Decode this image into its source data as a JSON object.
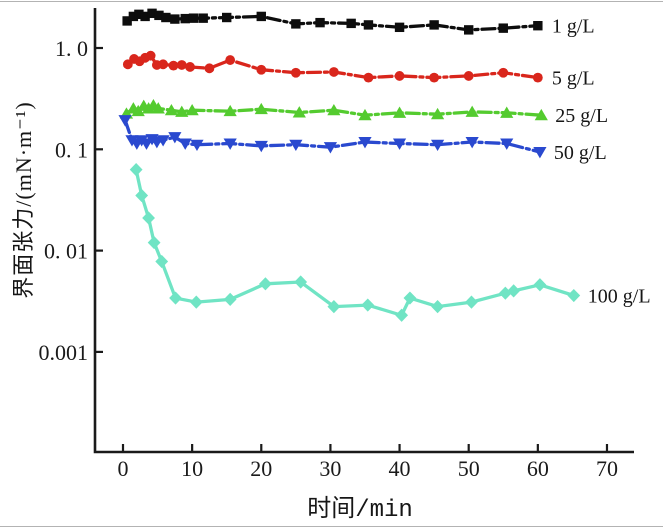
{
  "chart_data": {
    "type": "line",
    "title": "",
    "xlabel": "时间/min",
    "ylabel": "界面张力/(mN·m⁻¹)",
    "y_scale": "log",
    "grid": false,
    "xlim": [
      -4,
      74
    ],
    "ylim": [
      0.0001,
      2.5
    ],
    "x_ticks": [
      0,
      10,
      20,
      30,
      40,
      50,
      60,
      70
    ],
    "y_ticks": [
      {
        "value": 1.0,
        "label": "1. 0"
      },
      {
        "value": 0.1,
        "label": "0. 1"
      },
      {
        "value": 0.01,
        "label": "0. 01"
      },
      {
        "value": 0.001,
        "label": "0.001"
      }
    ],
    "legend_position": "right-of-last-point",
    "series": [
      {
        "name": "1 g/L",
        "color": "#0d0d0d",
        "marker": "square",
        "line_style": "dash-dot",
        "points": [
          [
            0.6,
            1.85
          ],
          [
            1.5,
            2.05
          ],
          [
            2.3,
            2.15
          ],
          [
            3.2,
            2.05
          ],
          [
            4.2,
            2.2
          ],
          [
            5.2,
            2.1
          ],
          [
            6.2,
            2.0
          ],
          [
            7.5,
            1.93
          ],
          [
            9,
            1.95
          ],
          [
            10.2,
            1.97
          ],
          [
            11.6,
            1.97
          ],
          [
            15,
            2.0
          ],
          [
            20,
            2.05
          ],
          [
            25,
            1.73
          ],
          [
            28.5,
            1.78
          ],
          [
            33,
            1.75
          ],
          [
            35.5,
            1.69
          ],
          [
            40,
            1.6
          ],
          [
            45,
            1.69
          ],
          [
            50,
            1.51
          ],
          [
            55,
            1.57
          ],
          [
            60,
            1.66
          ]
        ]
      },
      {
        "name": "5 g/L",
        "color": "#d9261c",
        "marker": "circle",
        "line_style": "dash-dot",
        "points": [
          [
            0.7,
            0.69
          ],
          [
            1.6,
            0.78
          ],
          [
            2.4,
            0.74
          ],
          [
            3.2,
            0.8
          ],
          [
            4,
            0.84
          ],
          [
            4.9,
            0.68
          ],
          [
            5.8,
            0.69
          ],
          [
            7.3,
            0.67
          ],
          [
            8.5,
            0.68
          ],
          [
            9.7,
            0.65
          ],
          [
            12.5,
            0.63
          ],
          [
            15.5,
            0.76
          ],
          [
            20,
            0.61
          ],
          [
            25,
            0.57
          ],
          [
            30.5,
            0.58
          ],
          [
            35.5,
            0.51
          ],
          [
            40,
            0.53
          ],
          [
            45,
            0.51
          ],
          [
            50,
            0.53
          ],
          [
            55,
            0.57
          ],
          [
            60,
            0.51
          ]
        ]
      },
      {
        "name": "25 g/L",
        "color": "#54cb2f",
        "marker": "triangle-up",
        "line_style": "dash-dot",
        "points": [
          [
            0.5,
            0.225
          ],
          [
            1.5,
            0.253
          ],
          [
            2.2,
            0.238
          ],
          [
            3,
            0.268
          ],
          [
            3.7,
            0.253
          ],
          [
            4.4,
            0.272
          ],
          [
            5.1,
            0.253
          ],
          [
            7,
            0.243
          ],
          [
            8.5,
            0.234
          ],
          [
            10,
            0.243
          ],
          [
            15.5,
            0.238
          ],
          [
            20,
            0.249
          ],
          [
            25.5,
            0.231
          ],
          [
            30.5,
            0.243
          ],
          [
            35,
            0.217
          ],
          [
            40,
            0.229
          ],
          [
            45.5,
            0.222
          ],
          [
            50.5,
            0.234
          ],
          [
            55.5,
            0.229
          ],
          [
            60.5,
            0.217
          ]
        ]
      },
      {
        "name": "50 g/L",
        "color": "#2a49cf",
        "marker": "triangle-down",
        "line_style": "dash-dot",
        "points": [
          [
            0.3,
            0.194
          ],
          [
            1.3,
            0.123
          ],
          [
            2,
            0.114
          ],
          [
            2.7,
            0.123
          ],
          [
            3.4,
            0.114
          ],
          [
            4.2,
            0.126
          ],
          [
            4.9,
            0.118
          ],
          [
            5.8,
            0.123
          ],
          [
            7.5,
            0.132
          ],
          [
            9,
            0.114
          ],
          [
            10.7,
            0.111
          ],
          [
            15.5,
            0.114
          ],
          [
            20,
            0.108
          ],
          [
            25,
            0.111
          ],
          [
            30,
            0.105
          ],
          [
            35,
            0.118
          ],
          [
            40,
            0.114
          ],
          [
            45.5,
            0.111
          ],
          [
            50.5,
            0.118
          ],
          [
            55.5,
            0.114
          ],
          [
            60.3,
            0.094
          ]
        ]
      },
      {
        "name": "100 g/L",
        "color": "#70e4c4",
        "marker": "diamond",
        "line_style": "solid",
        "points": [
          [
            1.9,
            0.063
          ],
          [
            2.7,
            0.035
          ],
          [
            3.7,
            0.021
          ],
          [
            4.5,
            0.012
          ],
          [
            5.6,
            0.0078
          ],
          [
            7.6,
            0.0034
          ],
          [
            10.6,
            0.0031
          ],
          [
            15.5,
            0.0033
          ],
          [
            20.6,
            0.0047
          ],
          [
            25.7,
            0.0049
          ],
          [
            30.5,
            0.0028
          ],
          [
            35.4,
            0.0029
          ],
          [
            40.3,
            0.0023
          ],
          [
            41.5,
            0.0034
          ],
          [
            45.5,
            0.0028
          ],
          [
            50.4,
            0.0031
          ],
          [
            55.3,
            0.0038
          ],
          [
            56.5,
            0.004
          ],
          [
            60.3,
            0.0046
          ],
          [
            65.2,
            0.0036
          ]
        ]
      }
    ]
  }
}
